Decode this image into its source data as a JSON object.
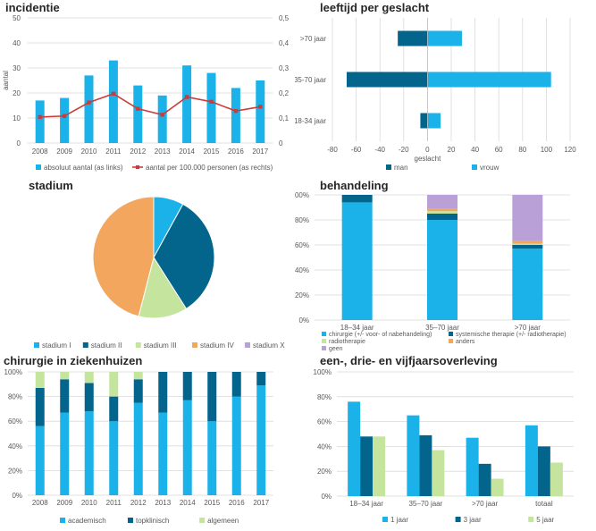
{
  "colors": {
    "light_blue": "#1ab2e8",
    "dark_teal": "#03658c",
    "light_green": "#c5e59f",
    "orange": "#f2a65e",
    "lavender": "#b9a0d6",
    "red": "#cc3b3b",
    "grid": "#d9d9d9",
    "axis_text": "#595959"
  },
  "chart_data": [
    {
      "id": "incidentie",
      "type": "bar+line",
      "title": "incidentie",
      "categories": [
        "2008",
        "2009",
        "2010",
        "2011",
        "2012",
        "2013",
        "2014",
        "2015",
        "2016",
        "2017"
      ],
      "series": [
        {
          "name": "absoluut aantal (as links)",
          "type": "bar",
          "axis": "left",
          "color": "#1ab2e8",
          "values": [
            17,
            18,
            27,
            33,
            23,
            19,
            31,
            28,
            22,
            25
          ]
        },
        {
          "name": "aantal per 100.000 personen (as rechts)",
          "type": "line",
          "axis": "right",
          "color": "#cc3b3b",
          "values": [
            0.104,
            0.108,
            0.162,
            0.197,
            0.137,
            0.113,
            0.184,
            0.165,
            0.128,
            0.145
          ]
        }
      ],
      "ylabel": "aantal",
      "ylim": [
        0,
        50
      ],
      "yticks": [
        "0",
        "10",
        "20",
        "30",
        "40",
        "50"
      ],
      "y2lim": [
        0,
        0.5
      ],
      "y2ticks": [
        "0",
        "0,1",
        "0,2",
        "0,3",
        "0,4",
        "0,5"
      ],
      "grid": true,
      "legend": "bottom"
    },
    {
      "id": "leeftijd",
      "type": "bar",
      "orientation": "horizontal",
      "title": "leeftijd per geslacht",
      "categories": [
        ">70 jaar",
        "35-70 jaar",
        "18-34 jaar"
      ],
      "series": [
        {
          "name": "man",
          "color": "#03658c",
          "values": [
            -25,
            -68,
            -6
          ]
        },
        {
          "name": "vrouw",
          "color": "#1ab2e8",
          "values": [
            29,
            104,
            11
          ]
        }
      ],
      "xlabel": "geslacht",
      "xlim": [
        -80,
        120
      ],
      "xticks": [
        "-80",
        "-60",
        "-40",
        "-20",
        "0",
        "20",
        "40",
        "60",
        "80",
        "100",
        "120"
      ],
      "grid": true,
      "legend": "bottom"
    },
    {
      "id": "stadium",
      "type": "pie",
      "title": "stadium",
      "labels": [
        "stadium I",
        "stadium II",
        "stadium III",
        "stadium IV",
        "stadium X"
      ],
      "colors": [
        "#1ab2e8",
        "#03658c",
        "#c5e59f",
        "#f2a65e",
        "#b9a0d6"
      ],
      "values": [
        8,
        33,
        13,
        46,
        0
      ],
      "legend": "bottom"
    },
    {
      "id": "behandeling",
      "type": "bar",
      "stacked": "percent",
      "title": "behandeling",
      "categories": [
        "18–34 jaar",
        "35–70 jaar",
        ">70 jaar"
      ],
      "series": [
        {
          "name": "chirurgie (+/- voor- of nabehandeling)",
          "color": "#1ab2e8",
          "values": [
            94,
            80,
            57
          ]
        },
        {
          "name": "systemische therapie (+/- radiotherapie)",
          "color": "#03658c",
          "values": [
            6,
            5,
            3
          ]
        },
        {
          "name": "radiotherapie",
          "color": "#c5e59f",
          "values": [
            0,
            2,
            1
          ]
        },
        {
          "name": "anders",
          "color": "#f2a65e",
          "values": [
            0,
            2,
            2
          ]
        },
        {
          "name": "geen",
          "color": "#b9a0d6",
          "values": [
            0,
            11,
            37
          ]
        }
      ],
      "ylim": [
        0,
        100
      ],
      "yticks": [
        "0%",
        "20%",
        "40%",
        "60%",
        "80%",
        "100%"
      ],
      "grid": true,
      "legend": "bottom"
    },
    {
      "id": "chirurgie",
      "type": "bar",
      "stacked": "percent",
      "title": "chirurgie in ziekenhuizen",
      "categories": [
        "2008",
        "2009",
        "2010",
        "2011",
        "2012",
        "2013",
        "2014",
        "2015",
        "2016",
        "2017"
      ],
      "series": [
        {
          "name": "academisch",
          "color": "#1ab2e8",
          "values": [
            56,
            67,
            68,
            60,
            75,
            67,
            77,
            60,
            80,
            89
          ]
        },
        {
          "name": "topklinisch",
          "color": "#03658c",
          "values": [
            31,
            27,
            23,
            20,
            19,
            33,
            23,
            40,
            20,
            11
          ]
        },
        {
          "name": "algemeen",
          "color": "#c5e59f",
          "values": [
            13,
            6,
            9,
            20,
            6,
            0,
            0,
            0,
            0,
            0
          ]
        }
      ],
      "ylim": [
        0,
        100
      ],
      "yticks": [
        "0%",
        "20%",
        "40%",
        "60%",
        "80%",
        "100%"
      ],
      "grid": true,
      "legend": "bottom"
    },
    {
      "id": "overleving",
      "type": "bar",
      "title": "een-, drie- en vijfjaarsoverleving",
      "categories": [
        "18–34 jaar",
        "35–70 jaar",
        ">70 jaar",
        "totaal"
      ],
      "series": [
        {
          "name": "1 jaar",
          "color": "#1ab2e8",
          "values": [
            76,
            65,
            47,
            57
          ]
        },
        {
          "name": "3 jaar",
          "color": "#03658c",
          "values": [
            48,
            49,
            26,
            40
          ]
        },
        {
          "name": "5 jaar",
          "color": "#c5e59f",
          "values": [
            48,
            37,
            14,
            27
          ]
        }
      ],
      "ylim": [
        0,
        100
      ],
      "yticks": [
        "0%",
        "20%",
        "40%",
        "60%",
        "80%",
        "100%"
      ],
      "grid": true,
      "legend": "bottom"
    }
  ]
}
